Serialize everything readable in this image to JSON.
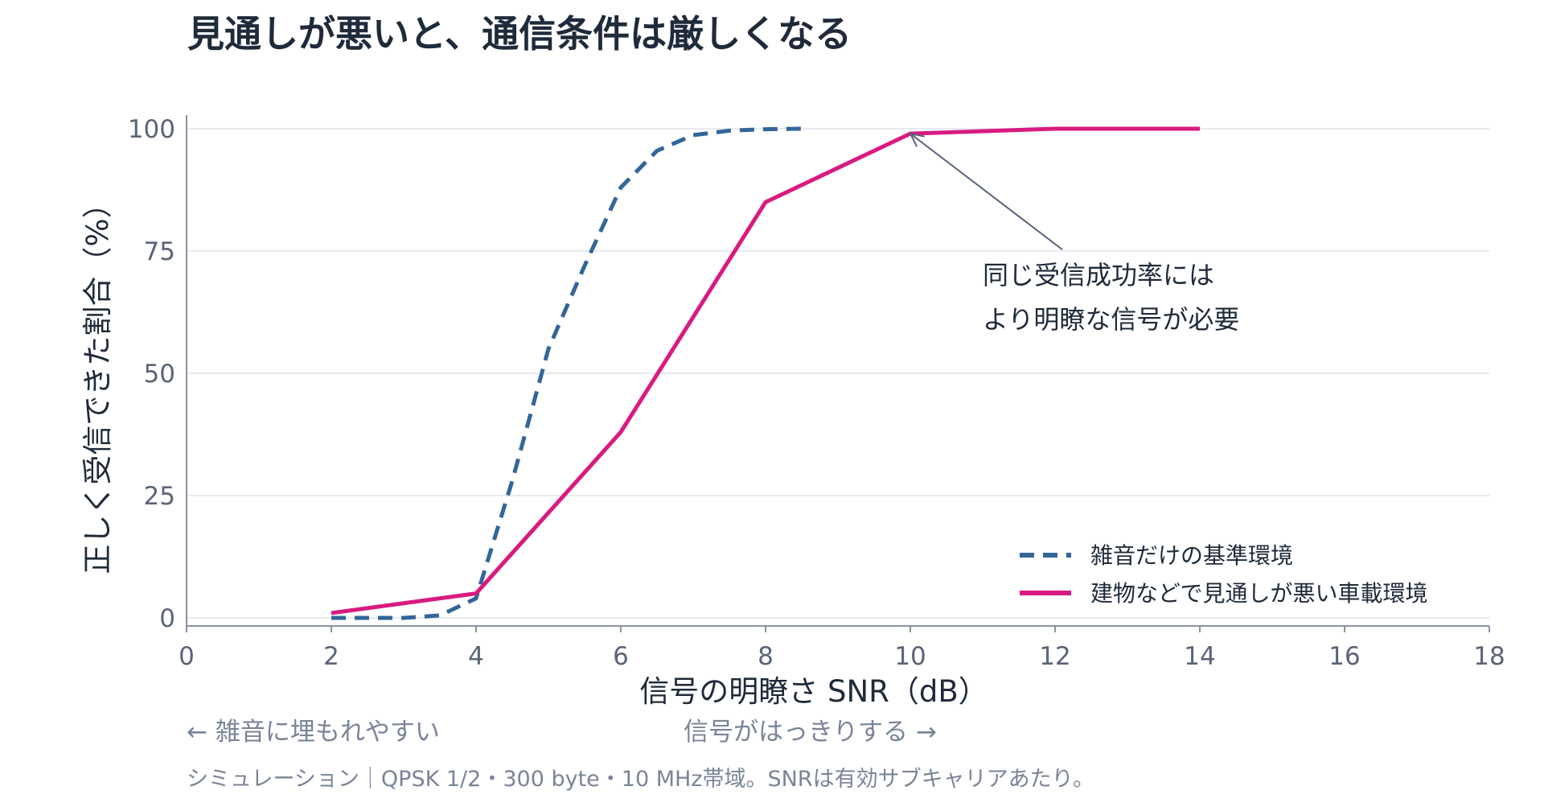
{
  "chart_data": {
    "type": "line",
    "title": "見通しが悪いと、通信条件は厳しくなる",
    "xlabel": "信号の明瞭さ  SNR（dB）",
    "ylabel": "正しく受信できた割合（%）",
    "xlim": [
      0,
      18
    ],
    "ylim": [
      0,
      100
    ],
    "xticks": [
      "0",
      "2",
      "4",
      "6",
      "8",
      "10",
      "12",
      "14",
      "16",
      "18"
    ],
    "yticks": [
      "0",
      "25",
      "50",
      "75",
      "100"
    ],
    "grid": "horizontal",
    "legend_position": "bottom-right",
    "series": [
      {
        "name": "雑音だけの基準環境",
        "color": "#336699",
        "dash": "dashed",
        "x": [
          2,
          3,
          3.5,
          4,
          4.5,
          5,
          5.5,
          6,
          6.5,
          7,
          7.5,
          8,
          8.5
        ],
        "y": [
          0,
          0,
          0.5,
          4,
          28,
          55,
          72,
          88,
          95.5,
          98.7,
          99.6,
          99.9,
          100
        ]
      },
      {
        "name": "建物などで見通しが悪い車載環境",
        "color": "#d81b80",
        "dash": "solid",
        "x": [
          2,
          4,
          6,
          8,
          10,
          12,
          14
        ],
        "y": [
          1,
          5,
          38,
          85,
          99,
          100,
          100
        ]
      }
    ],
    "annotation": {
      "lines": [
        "同じ受信成功率には",
        "より明瞭な信号が必要"
      ],
      "arrow_to": {
        "x": 10,
        "y": 99
      },
      "arrow_from": {
        "x": 12.1,
        "y": 75.3
      }
    },
    "hint_left": "← 雑音に埋もれやすい",
    "hint_right": "信号がはっきりする →",
    "footnote": "シミュレーション｜QPSK 1/2・300 byte・10 MHz帯域。SNRは有効サブキャリアあたり。"
  }
}
